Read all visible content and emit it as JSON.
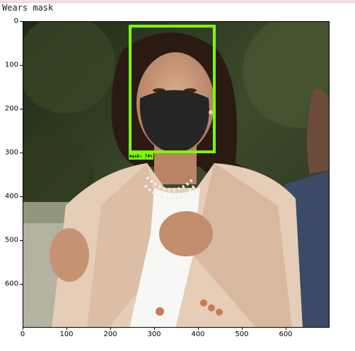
{
  "notebook": {
    "output_text": "Wears mask"
  },
  "figure": {
    "x_ticks": [
      "0",
      "100",
      "200",
      "300",
      "400",
      "500",
      "600"
    ],
    "y_ticks": [
      "0",
      "100",
      "200",
      "300",
      "400",
      "500",
      "600"
    ]
  },
  "detection": {
    "label": "mask: 74%",
    "box_color": "#7cff00"
  },
  "colors": {
    "jacket": "#e6cdb8",
    "mask": "#252525",
    "hair": "#2a1a12",
    "skin": "#c8997a"
  }
}
